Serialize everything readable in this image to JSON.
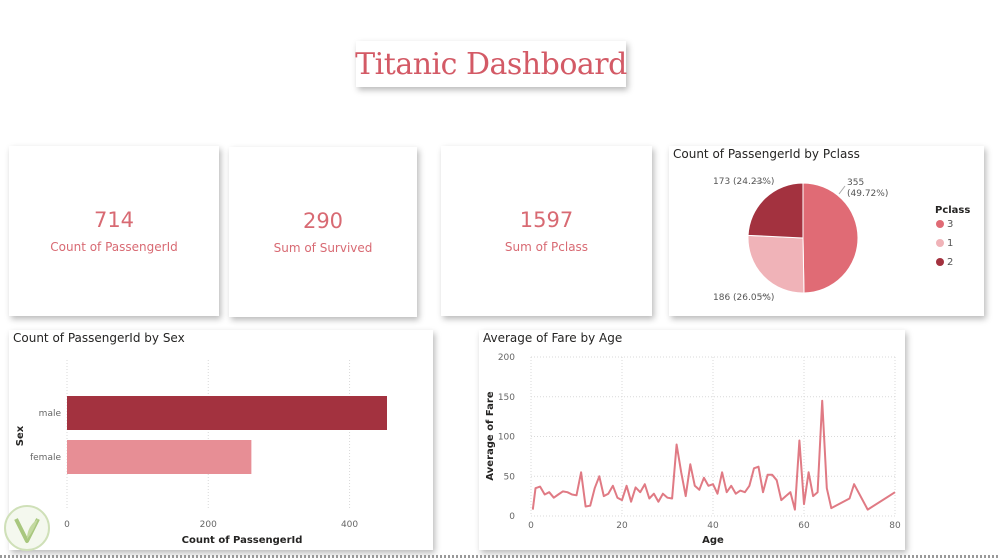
{
  "header": {
    "title": "Titanic Dashboard"
  },
  "kpis": [
    {
      "value": "714",
      "label": "Count of PassengerId"
    },
    {
      "value": "290",
      "label": "Sum of Survived"
    },
    {
      "value": "1597",
      "label": "Sum of Pclass"
    }
  ],
  "visuals": {
    "pie_title": "Count of PassengerId by Pclass",
    "bar_title": "Count of PassengerId by Sex",
    "line_title": "Average of Fare by Age"
  },
  "colors": {
    "accent": "#d35a66",
    "class3": "#e06b75",
    "class1": "#f0b3b8",
    "class2": "#a3323f",
    "male": "#a3323f",
    "female": "#e78e95",
    "line": "#e07a84"
  },
  "chart_data": [
    {
      "type": "pie",
      "title": "Count of PassengerId by Pclass",
      "legend_title": "Pclass",
      "legend_position": "right",
      "slices": [
        {
          "label": "3",
          "value": 355,
          "text": "355 (49.72%)",
          "color": "#e06b75"
        },
        {
          "label": "1",
          "value": 186,
          "text": "186 (26.05%)",
          "color": "#f0b3b8"
        },
        {
          "label": "2",
          "value": 173,
          "text": "173 (24.23%)",
          "color": "#a3323f"
        }
      ]
    },
    {
      "type": "bar",
      "orientation": "horizontal",
      "title": "Count of PassengerId by Sex",
      "categories": [
        "male",
        "female"
      ],
      "values": [
        453,
        261
      ],
      "colors": [
        "#a3323f",
        "#e78e95"
      ],
      "xlabel": "Count of PassengerId",
      "ylabel": "Sex",
      "xlim": [
        0,
        453
      ],
      "xticks": [
        0,
        200,
        400
      ],
      "grid": true
    },
    {
      "type": "line",
      "title": "Average of Fare by Age",
      "xlabel": "Age",
      "ylabel": "Average of Fare",
      "xlim": [
        0,
        80
      ],
      "ylim": [
        0,
        200
      ],
      "xticks": [
        0,
        20,
        40,
        60,
        80
      ],
      "yticks": [
        0,
        50,
        100,
        150,
        200
      ],
      "grid": true,
      "x": [
        0.4,
        1,
        2,
        3,
        4,
        5,
        6,
        7,
        8,
        9,
        10,
        11,
        12,
        13,
        14,
        15,
        16,
        17,
        18,
        19,
        20,
        21,
        22,
        23,
        24,
        25,
        26,
        27,
        28,
        29,
        30,
        31,
        32,
        33,
        34,
        35,
        36,
        37,
        38,
        39,
        40,
        41,
        42,
        43,
        44,
        45,
        46,
        47,
        48,
        49,
        50,
        51,
        52,
        53,
        54,
        55,
        56,
        57,
        58,
        59,
        60,
        61,
        62,
        63,
        64,
        65,
        66,
        70,
        71,
        74,
        80
      ],
      "y": [
        8,
        35,
        37,
        27,
        30,
        23,
        27,
        31,
        30,
        27,
        26,
        55,
        12,
        13,
        35,
        50,
        25,
        28,
        38,
        23,
        20,
        38,
        18,
        36,
        30,
        40,
        22,
        28,
        18,
        28,
        23,
        22,
        90,
        55,
        25,
        65,
        38,
        33,
        48,
        38,
        40,
        28,
        55,
        30,
        38,
        28,
        32,
        30,
        38,
        60,
        62,
        30,
        52,
        52,
        45,
        20,
        25,
        30,
        8,
        95,
        15,
        55,
        25,
        30,
        145,
        35,
        10,
        22,
        40,
        8,
        30
      ]
    }
  ]
}
